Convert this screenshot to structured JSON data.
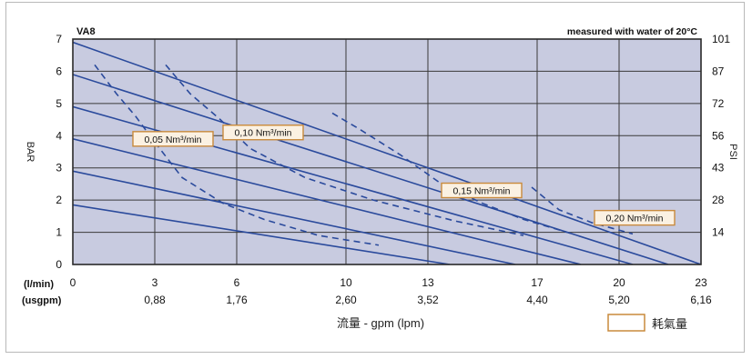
{
  "chart_data": {
    "type": "line",
    "title": "VA8",
    "note": "measured with water of 20°C",
    "xlabel": "流量 - gpm (lpm)",
    "ylabel": "BAR",
    "ylabel_right": "PSI",
    "xlim": [
      0,
      23
    ],
    "ylim": [
      0,
      7
    ],
    "row_label_lpm": "(l/min)",
    "row_label_gpm": "(usgpm)",
    "x_ticks": [
      0,
      3,
      6,
      10,
      13,
      17,
      20,
      23
    ],
    "x_tick_labels": [
      "0",
      "3",
      "6",
      "10",
      "13",
      "17",
      "20",
      "23"
    ],
    "x_tick_labels_gpm": [
      "",
      "0,88",
      "1,76",
      "2,60",
      "3,52",
      "4,40",
      "5,20",
      "6,16"
    ],
    "y_ticks": [
      0,
      1,
      2,
      3,
      4,
      5,
      6,
      7
    ],
    "y_tick_labels": [
      "0",
      "1",
      "2",
      "3",
      "4",
      "5",
      "6",
      "7"
    ],
    "y_right_ticks": [
      1,
      2,
      3,
      4,
      5,
      6,
      7
    ],
    "y_right_tick_labels": [
      "14",
      "28",
      "43",
      "56",
      "72",
      "87",
      "101"
    ],
    "legend_label": "耗氣量",
    "grid": true,
    "colors": {
      "plot_bg": "#c8cbe0",
      "line": "#2a4a9c",
      "grid": "#3a3a3a",
      "box_border": "#c98a3c",
      "box_fill": "#fbf1e2"
    },
    "series": [
      {
        "values": [
          [
            0,
            6.9
          ],
          [
            23,
            0
          ]
        ]
      },
      {
        "values": [
          [
            0,
            5.9
          ],
          [
            21.8,
            0
          ]
        ]
      },
      {
        "values": [
          [
            0,
            4.9
          ],
          [
            20.5,
            0
          ]
        ]
      },
      {
        "values": [
          [
            0,
            3.9
          ],
          [
            18.6,
            0
          ]
        ]
      },
      {
        "values": [
          [
            0,
            2.9
          ],
          [
            16.2,
            0
          ]
        ]
      },
      {
        "values": [
          [
            0,
            1.85
          ],
          [
            13.8,
            0
          ]
        ]
      }
    ],
    "air_consumption": [
      {
        "label": "0,05 Nm³/min",
        "label_at": [
          2.2,
          3.9
        ],
        "values": [
          [
            0.8,
            6.2
          ],
          [
            1.6,
            5.3
          ],
          [
            2.3,
            4.6
          ],
          [
            3.0,
            3.8
          ],
          [
            4.0,
            2.7
          ],
          [
            5.5,
            1.9
          ],
          [
            7.0,
            1.4
          ],
          [
            9.0,
            0.9
          ],
          [
            11.2,
            0.6
          ]
        ]
      },
      {
        "label": "0,10 Nm³/min",
        "label_at": [
          5.5,
          4.1
        ],
        "values": [
          [
            3.4,
            6.2
          ],
          [
            4.3,
            5.3
          ],
          [
            5.4,
            4.5
          ],
          [
            6.5,
            3.6
          ],
          [
            8.5,
            2.7
          ],
          [
            11.0,
            2.0
          ],
          [
            14.0,
            1.35
          ],
          [
            16.5,
            0.9
          ]
        ]
      },
      {
        "label": "0,15 Nm³/min",
        "label_at": [
          13.5,
          2.3
        ],
        "values": [
          [
            9.5,
            4.7
          ],
          [
            10.5,
            4.2
          ],
          [
            12.0,
            3.4
          ],
          [
            13.5,
            2.5
          ],
          [
            15.0,
            1.9
          ],
          [
            16.5,
            1.4
          ],
          [
            18.3,
            0.95
          ]
        ]
      },
      {
        "label": "0,20 Nm³/min",
        "label_at": [
          19.1,
          1.45
        ],
        "values": [
          [
            16.8,
            2.4
          ],
          [
            17.8,
            1.7
          ],
          [
            19.0,
            1.3
          ],
          [
            20.5,
            0.95
          ]
        ]
      }
    ]
  }
}
